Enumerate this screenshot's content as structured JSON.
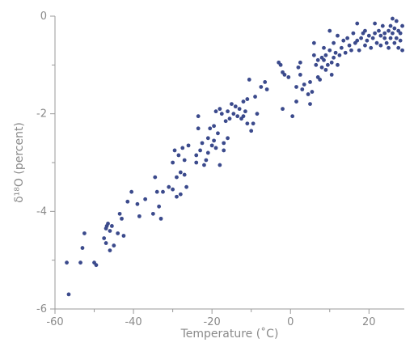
{
  "chart_data": {
    "type": "scatter",
    "xlabel": "Temperature (˚C)",
    "ylabel": "δ¹⁸O (percent)",
    "xlim": [
      -60,
      29
    ],
    "ylim": [
      -6,
      0
    ],
    "x_major_ticks": [
      -60,
      -40,
      -20,
      0,
      20
    ],
    "x_tick_labels": [
      "-60",
      "-40",
      "-20",
      "0",
      "20"
    ],
    "x_minor_ticks": [
      -50,
      -30,
      -10,
      10
    ],
    "y_major_ticks": [
      0,
      -2,
      -4,
      -6
    ],
    "y_tick_labels": [
      "0",
      "-2",
      "-4",
      "-6"
    ],
    "y_minor_ticks": [
      -1,
      -3,
      -5
    ],
    "grid": false,
    "series": [
      {
        "color": "#3b4a8c",
        "points": [
          [
            -57,
            -5.05
          ],
          [
            -56.5,
            -5.7
          ],
          [
            -53.5,
            -5.05
          ],
          [
            -53,
            -4.75
          ],
          [
            -52.5,
            -4.45
          ],
          [
            -50,
            -5.05
          ],
          [
            -49.5,
            -5.1
          ],
          [
            -47.5,
            -4.55
          ],
          [
            -47,
            -4.35
          ],
          [
            -47,
            -4.65
          ],
          [
            -46.8,
            -4.3
          ],
          [
            -46.5,
            -4.25
          ],
          [
            -46,
            -4.4
          ],
          [
            -46,
            -4.8
          ],
          [
            -45.5,
            -4.3
          ],
          [
            -45,
            -4.7
          ],
          [
            -44,
            -4.45
          ],
          [
            -43.5,
            -4.05
          ],
          [
            -43,
            -4.15
          ],
          [
            -42.5,
            -4.5
          ],
          [
            -41.5,
            -3.8
          ],
          [
            -40.5,
            -3.6
          ],
          [
            -39,
            -3.85
          ],
          [
            -38.5,
            -4.1
          ],
          [
            -37,
            -3.75
          ],
          [
            -35,
            -4.05
          ],
          [
            -34.5,
            -3.3
          ],
          [
            -34,
            -3.6
          ],
          [
            -33.5,
            -3.9
          ],
          [
            -33,
            -4.15
          ],
          [
            -32.5,
            -3.6
          ],
          [
            -31,
            -3.5
          ],
          [
            -30,
            -3.55
          ],
          [
            -30,
            -3.0
          ],
          [
            -29.5,
            -2.75
          ],
          [
            -29,
            -3.3
          ],
          [
            -29,
            -3.7
          ],
          [
            -28.5,
            -2.85
          ],
          [
            -28,
            -3.2
          ],
          [
            -28,
            -3.65
          ],
          [
            -27.5,
            -2.7
          ],
          [
            -27,
            -3.25
          ],
          [
            -27,
            -2.95
          ],
          [
            -26.5,
            -3.5
          ],
          [
            -26,
            -2.65
          ],
          [
            -24,
            -2.85
          ],
          [
            -24,
            -3.0
          ],
          [
            -23.5,
            -2.05
          ],
          [
            -23.5,
            -2.3
          ],
          [
            -23,
            -2.75
          ],
          [
            -22.5,
            -2.6
          ],
          [
            -22,
            -3.05
          ],
          [
            -21.5,
            -2.95
          ],
          [
            -21,
            -2.5
          ],
          [
            -21,
            -2.8
          ],
          [
            -20.5,
            -2.3
          ],
          [
            -20,
            -2.65
          ],
          [
            -19.5,
            -2.55
          ],
          [
            -19.5,
            -2.25
          ],
          [
            -19,
            -1.95
          ],
          [
            -19,
            -2.7
          ],
          [
            -18.5,
            -2.4
          ],
          [
            -18,
            -1.9
          ],
          [
            -18,
            -3.05
          ],
          [
            -17.5,
            -2.0
          ],
          [
            -17,
            -2.75
          ],
          [
            -17,
            -2.6
          ],
          [
            -16.5,
            -2.15
          ],
          [
            -16,
            -1.95
          ],
          [
            -16,
            -2.5
          ],
          [
            -15.5,
            -2.1
          ],
          [
            -15,
            -1.8
          ],
          [
            -14.5,
            -2.0
          ],
          [
            -14,
            -1.85
          ],
          [
            -13.5,
            -2.05
          ],
          [
            -13,
            -1.9
          ],
          [
            -12.5,
            -2.1
          ],
          [
            -12,
            -1.75
          ],
          [
            -12,
            -2.05
          ],
          [
            -11.5,
            -1.95
          ],
          [
            -11,
            -1.7
          ],
          [
            -11,
            -2.2
          ],
          [
            -10.5,
            -1.3
          ],
          [
            -10,
            -2.35
          ],
          [
            -9.5,
            -2.2
          ],
          [
            -9,
            -1.65
          ],
          [
            -8.5,
            -2.0
          ],
          [
            -7.5,
            -1.45
          ],
          [
            -6.5,
            -1.35
          ],
          [
            -6,
            -1.5
          ],
          [
            -3,
            -0.95
          ],
          [
            -2.5,
            -1.0
          ],
          [
            -2,
            -1.15
          ],
          [
            -2,
            -1.9
          ],
          [
            -1.5,
            -1.2
          ],
          [
            -0.5,
            -1.25
          ],
          [
            0.5,
            -2.05
          ],
          [
            1.5,
            -1.45
          ],
          [
            1.5,
            -1.75
          ],
          [
            2,
            -1.05
          ],
          [
            2.5,
            -1.2
          ],
          [
            2.5,
            -0.95
          ],
          [
            3,
            -1.5
          ],
          [
            3.5,
            -1.4
          ],
          [
            4.5,
            -1.6
          ],
          [
            5,
            -1.8
          ],
          [
            5,
            -1.35
          ],
          [
            5.5,
            -1.55
          ],
          [
            6,
            -0.55
          ],
          [
            6,
            -0.8
          ],
          [
            6.5,
            -1.0
          ],
          [
            7,
            -0.9
          ],
          [
            7,
            -1.25
          ],
          [
            7.5,
            -1.3
          ],
          [
            8,
            -0.85
          ],
          [
            8,
            -1.05
          ],
          [
            8.5,
            -0.65
          ],
          [
            8.5,
            -0.9
          ],
          [
            9,
            -1.1
          ],
          [
            9,
            -0.8
          ],
          [
            9.5,
            -1.0
          ],
          [
            10,
            -0.7
          ],
          [
            10,
            -0.3
          ],
          [
            10.5,
            -0.95
          ],
          [
            10.5,
            -1.2
          ],
          [
            11,
            -0.55
          ],
          [
            11,
            -0.85
          ],
          [
            11.5,
            -0.75
          ],
          [
            12,
            -0.4
          ],
          [
            12,
            -1.0
          ],
          [
            12.5,
            -0.8
          ],
          [
            13,
            -0.65
          ],
          [
            13.5,
            -0.5
          ],
          [
            14,
            -0.75
          ],
          [
            14.5,
            -0.45
          ],
          [
            15,
            -0.6
          ],
          [
            15.5,
            -0.7
          ],
          [
            16,
            -0.35
          ],
          [
            16.5,
            -0.55
          ],
          [
            17,
            -0.5
          ],
          [
            17,
            -0.15
          ],
          [
            17.5,
            -0.7
          ],
          [
            18,
            -0.45
          ],
          [
            18.5,
            -0.35
          ],
          [
            19,
            -0.6
          ],
          [
            19,
            -0.3
          ],
          [
            19.5,
            -0.5
          ],
          [
            20,
            -0.4
          ],
          [
            20.5,
            -0.65
          ],
          [
            21,
            -0.45
          ],
          [
            21.5,
            -0.35
          ],
          [
            21.5,
            -0.15
          ],
          [
            22,
            -0.55
          ],
          [
            22.5,
            -0.3
          ],
          [
            23,
            -0.4
          ],
          [
            23,
            -0.6
          ],
          [
            23.5,
            -0.2
          ],
          [
            24,
            -0.45
          ],
          [
            24,
            -0.35
          ],
          [
            24.5,
            -0.55
          ],
          [
            25,
            -0.3
          ],
          [
            25,
            -0.65
          ],
          [
            25.5,
            -0.2
          ],
          [
            25.5,
            -0.45
          ],
          [
            26,
            -0.05
          ],
          [
            26,
            -0.35
          ],
          [
            26.5,
            -0.55
          ],
          [
            26.5,
            -0.25
          ],
          [
            27,
            -0.1
          ],
          [
            27,
            -0.45
          ],
          [
            27.5,
            -0.3
          ],
          [
            27.5,
            -0.65
          ],
          [
            28,
            -0.35
          ],
          [
            28,
            -0.5
          ],
          [
            28.5,
            -0.2
          ],
          [
            28.5,
            -0.7
          ]
        ]
      }
    ]
  }
}
